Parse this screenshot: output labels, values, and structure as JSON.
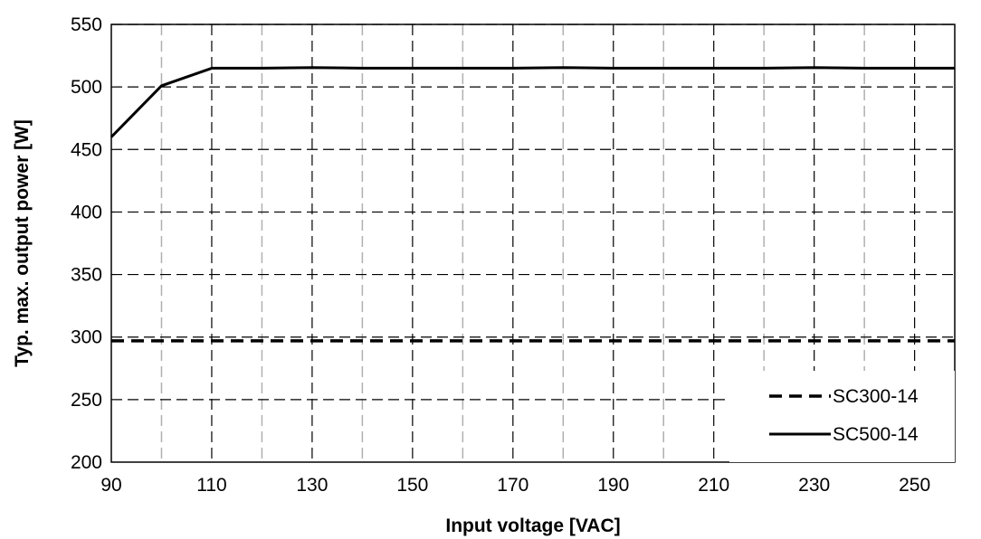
{
  "chart_data": {
    "type": "line",
    "xlabel": "Input voltage [VAC]",
    "ylabel": "Typ. max. output power [W]",
    "xlim": [
      90,
      258
    ],
    "ylim": [
      200,
      550
    ],
    "x_ticks": [
      90,
      110,
      130,
      150,
      170,
      190,
      210,
      230,
      250
    ],
    "x_minor_ticks": [
      100,
      120,
      140,
      160,
      180,
      200,
      220,
      240
    ],
    "y_ticks": [
      200,
      250,
      300,
      350,
      400,
      450,
      500,
      550
    ],
    "grid": true,
    "legend_position": "bottom-right",
    "series": [
      {
        "name": "SC300-14",
        "style": "dashed",
        "color": "#000000",
        "x": [
          90,
          100,
          110,
          120,
          130,
          140,
          150,
          160,
          170,
          180,
          190,
          200,
          210,
          220,
          230,
          240,
          250,
          258
        ],
        "y": [
          297,
          297,
          297,
          297,
          297,
          297,
          297,
          297,
          297,
          297,
          297,
          297,
          297,
          297,
          297,
          297,
          297,
          297
        ]
      },
      {
        "name": "SC500-14",
        "style": "solid",
        "color": "#000000",
        "x": [
          90,
          100,
          110,
          120,
          130,
          140,
          150,
          160,
          170,
          180,
          190,
          200,
          210,
          220,
          230,
          240,
          250,
          258
        ],
        "y": [
          460,
          501,
          515,
          515,
          515.5,
          515,
          515,
          515,
          515,
          515.5,
          515,
          515,
          515,
          515,
          515.5,
          515,
          515,
          515
        ]
      }
    ]
  }
}
